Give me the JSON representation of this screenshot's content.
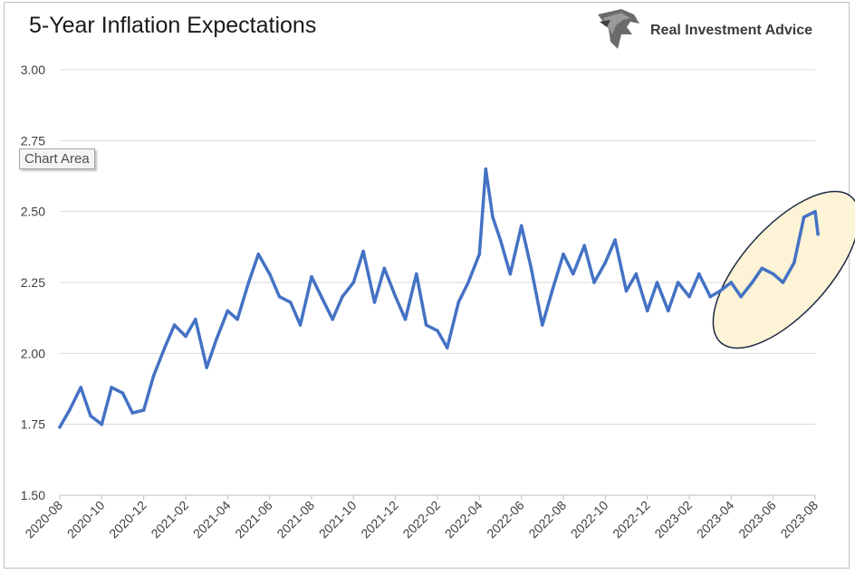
{
  "chart": {
    "title": "5-Year Inflation Expectations",
    "tooltip": "Chart Area"
  },
  "logo": {
    "text": "Real Investment Advice",
    "icon": "eagle-head-icon"
  },
  "colors": {
    "line": "#4472c4",
    "highlight_fill": "#fdf3d6",
    "highlight_stroke": "#1f2a44",
    "grid": "#d9d9d9"
  },
  "chart_data": {
    "type": "line",
    "title": "5-Year Inflation Expectations",
    "xlabel": "",
    "ylabel": "",
    "ylim": [
      1.5,
      3.0
    ],
    "yticks": [
      "1.50",
      "1.75",
      "2.00",
      "2.25",
      "2.50",
      "2.75",
      "3.00"
    ],
    "xticks": [
      "2020-08",
      "2020-10",
      "2020-12",
      "2021-02",
      "2021-04",
      "2021-06",
      "2021-08",
      "2021-10",
      "2021-12",
      "2022-02",
      "2022-04",
      "2022-06",
      "2022-08",
      "2022-10",
      "2022-12",
      "2023-02",
      "2023-04",
      "2023-06",
      "2023-08"
    ],
    "grid": true,
    "x": [
      "2020-08-01",
      "2020-08-15",
      "2020-09-01",
      "2020-09-15",
      "2020-10-01",
      "2020-10-15",
      "2020-11-01",
      "2020-11-15",
      "2020-12-01",
      "2020-12-15",
      "2021-01-01",
      "2021-01-15",
      "2021-02-01",
      "2021-02-15",
      "2021-03-01",
      "2021-03-15",
      "2021-04-01",
      "2021-04-15",
      "2021-05-01",
      "2021-05-15",
      "2021-06-01",
      "2021-06-15",
      "2021-07-01",
      "2021-07-15",
      "2021-08-01",
      "2021-08-15",
      "2021-09-01",
      "2021-09-15",
      "2021-10-01",
      "2021-10-15",
      "2021-11-01",
      "2021-11-15",
      "2021-12-01",
      "2021-12-15",
      "2022-01-01",
      "2022-01-15",
      "2022-02-01",
      "2022-02-15",
      "2022-03-01",
      "2022-03-15",
      "2022-04-01",
      "2022-04-10",
      "2022-04-20",
      "2022-05-01",
      "2022-05-15",
      "2022-06-01",
      "2022-06-15",
      "2022-07-01",
      "2022-07-15",
      "2022-08-01",
      "2022-08-15",
      "2022-09-01",
      "2022-09-15",
      "2022-10-01",
      "2022-10-15",
      "2022-11-01",
      "2022-11-15",
      "2022-12-01",
      "2022-12-15",
      "2023-01-01",
      "2023-01-15",
      "2023-02-01",
      "2023-02-15",
      "2023-03-01",
      "2023-03-15",
      "2023-04-01",
      "2023-04-15",
      "2023-05-01",
      "2023-05-15",
      "2023-06-01",
      "2023-06-15",
      "2023-07-01",
      "2023-07-15",
      "2023-08-01",
      "2023-08-05"
    ],
    "series": [
      {
        "name": "",
        "values": [
          1.74,
          1.8,
          1.88,
          1.78,
          1.75,
          1.88,
          1.86,
          1.79,
          1.8,
          1.92,
          2.02,
          2.1,
          2.06,
          2.12,
          1.95,
          2.05,
          2.15,
          2.12,
          2.25,
          2.35,
          2.28,
          2.2,
          2.18,
          2.1,
          2.27,
          2.2,
          2.12,
          2.2,
          2.25,
          2.36,
          2.18,
          2.3,
          2.2,
          2.12,
          2.28,
          2.1,
          2.08,
          2.02,
          2.18,
          2.25,
          2.35,
          2.65,
          2.48,
          2.4,
          2.28,
          2.45,
          2.3,
          2.1,
          2.22,
          2.35,
          2.28,
          2.38,
          2.25,
          2.32,
          2.4,
          2.22,
          2.28,
          2.15,
          2.25,
          2.15,
          2.25,
          2.2,
          2.28,
          2.2,
          2.22,
          2.25,
          2.2,
          2.25,
          2.3,
          2.28,
          2.25,
          2.32,
          2.48,
          2.5,
          2.42
        ]
      }
    ],
    "annotation": "highlighted-ellipse-2023"
  }
}
